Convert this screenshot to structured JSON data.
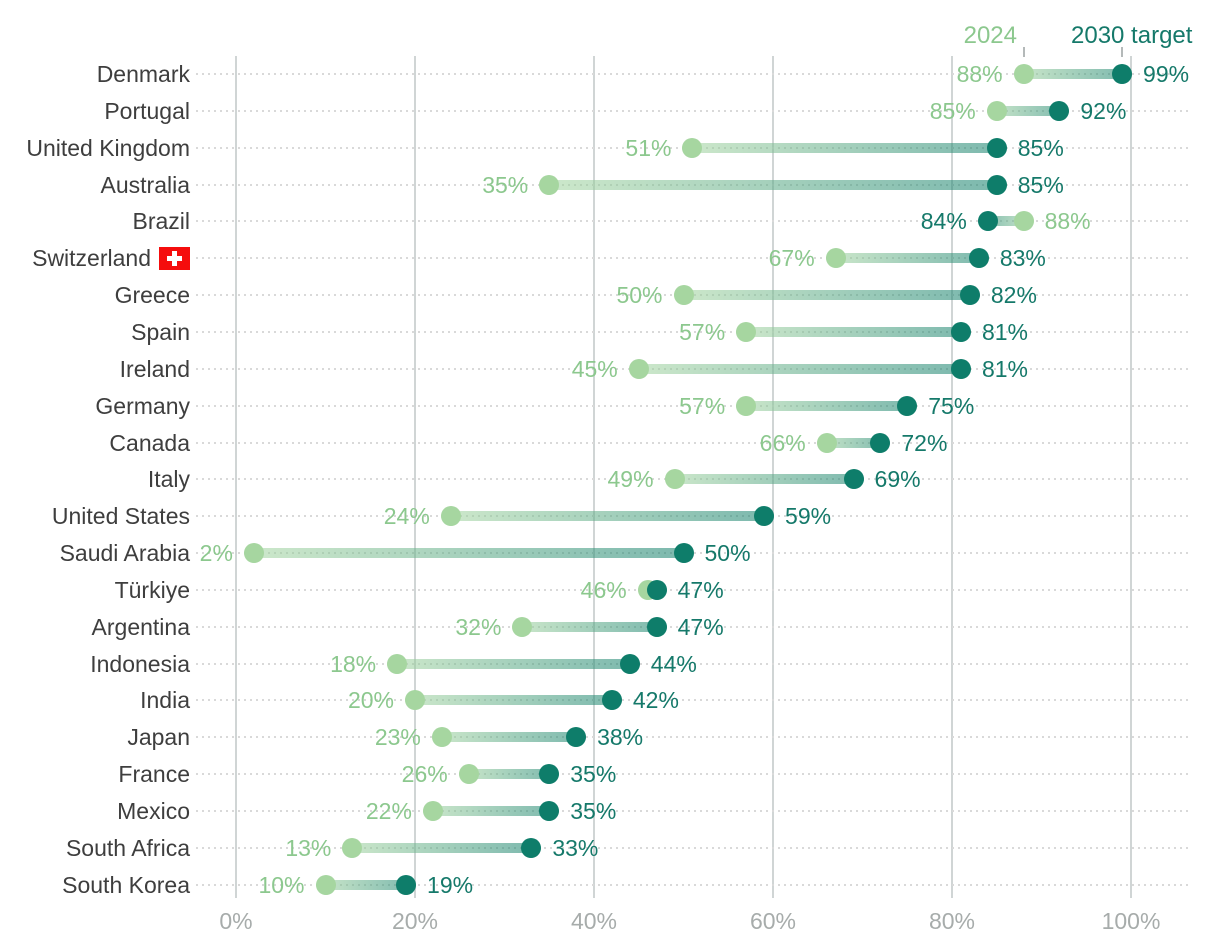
{
  "legend": {
    "label_2024": "2024",
    "label_target": "2030 target"
  },
  "colors": {
    "dot_2024": "#a6d6a0",
    "dot_target": "#0e7d6a",
    "connector_2024": "rgba(166,214,160,0.55)",
    "connector_target": "rgba(14,125,106,0.55)",
    "text_2024": "#8cc88e",
    "text_target": "#15796a",
    "country_label": "#3e3e3e",
    "axis_label": "#a7acab",
    "gridline": "#d0d5d5",
    "dotted_line": "#d9d9d9",
    "legend_tick": "#b4b9b9",
    "flag_red": "#f50d0d",
    "background": "#ffffff"
  },
  "chart_data": {
    "type": "dumbbell",
    "unit": "%",
    "series": [
      {
        "name": "2024"
      },
      {
        "name": "2030 target"
      }
    ],
    "x_axis": {
      "ticks": [
        {
          "label": "0%",
          "value": 0
        },
        {
          "label": "20%",
          "value": 20
        },
        {
          "label": "40%",
          "value": 40
        },
        {
          "label": "60%",
          "value": 60
        },
        {
          "label": "80%",
          "value": 80
        },
        {
          "label": "100%",
          "value": 100
        }
      ],
      "range": [
        0,
        100
      ],
      "grid": true
    },
    "rows": [
      {
        "country": "Denmark",
        "v2024": 88,
        "target": 99
      },
      {
        "country": "Portugal",
        "v2024": 85,
        "target": 92
      },
      {
        "country": "United Kingdom",
        "v2024": 51,
        "target": 85
      },
      {
        "country": "Australia",
        "v2024": 35,
        "target": 85
      },
      {
        "country": "Brazil",
        "v2024": 88,
        "target": 84
      },
      {
        "country": "Switzerland",
        "v2024": 67,
        "target": 83,
        "flag": "swiss-flag"
      },
      {
        "country": "Greece",
        "v2024": 50,
        "target": 82
      },
      {
        "country": "Spain",
        "v2024": 57,
        "target": 81
      },
      {
        "country": "Ireland",
        "v2024": 45,
        "target": 81
      },
      {
        "country": "Germany",
        "v2024": 57,
        "target": 75
      },
      {
        "country": "Canada",
        "v2024": 66,
        "target": 72
      },
      {
        "country": "Italy",
        "v2024": 49,
        "target": 69
      },
      {
        "country": "United States",
        "v2024": 24,
        "target": 59
      },
      {
        "country": "Saudi Arabia",
        "v2024": 2,
        "target": 50
      },
      {
        "country": "Türkiye",
        "v2024": 46,
        "target": 47
      },
      {
        "country": "Argentina",
        "v2024": 32,
        "target": 47
      },
      {
        "country": "Indonesia",
        "v2024": 18,
        "target": 44
      },
      {
        "country": "India",
        "v2024": 20,
        "target": 42
      },
      {
        "country": "Japan",
        "v2024": 23,
        "target": 38
      },
      {
        "country": "France",
        "v2024": 26,
        "target": 35
      },
      {
        "country": "Mexico",
        "v2024": 22,
        "target": 35
      },
      {
        "country": "South Africa",
        "v2024": 13,
        "target": 33
      },
      {
        "country": "South Korea",
        "v2024": 10,
        "target": 19
      }
    ]
  }
}
